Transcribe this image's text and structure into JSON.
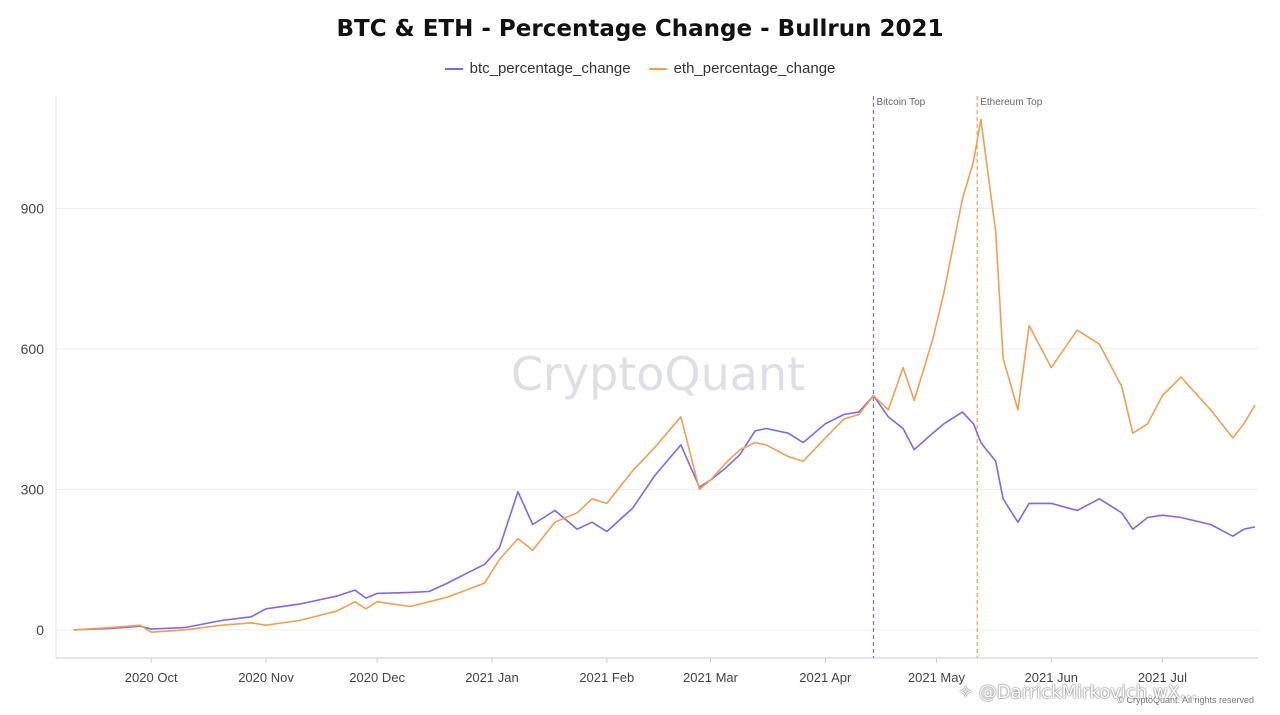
{
  "chart_data": {
    "type": "line",
    "title": "BTC & ETH - Percentage Change - Bullrun 2021",
    "xlabel": "",
    "ylabel": "",
    "x_range": [
      "2020-09-08",
      "2021-07-26"
    ],
    "ylim": [
      -60,
      1140
    ],
    "y_ticks": [
      0,
      300,
      600,
      900
    ],
    "x_ticks": [
      {
        "label": "2020 Oct",
        "date": "2020-10-01"
      },
      {
        "label": "2020 Nov",
        "date": "2020-11-01"
      },
      {
        "label": "2020 Dec",
        "date": "2020-12-01"
      },
      {
        "label": "2021 Jan",
        "date": "2021-01-01"
      },
      {
        "label": "2021 Feb",
        "date": "2021-02-01"
      },
      {
        "label": "2021 Mar",
        "date": "2021-03-01"
      },
      {
        "label": "2021 Apr",
        "date": "2021-04-01"
      },
      {
        "label": "2021 May",
        "date": "2021-05-01"
      },
      {
        "label": "2021 Jun",
        "date": "2021-06-01"
      },
      {
        "label": "2021 Jul",
        "date": "2021-07-01"
      }
    ],
    "grid": true,
    "legend_position": "top-center",
    "watermark": "CryptoQuant",
    "credit": "© CryptoQuant. All rights reserved",
    "annotations": [
      {
        "label": "Bitcoin Top",
        "date": "2021-04-14",
        "color": "#7b68ee"
      },
      {
        "label": "Ethereum Top",
        "date": "2021-05-12",
        "color": "#f0a050"
      }
    ],
    "series": [
      {
        "name": "btc_percentage_change",
        "color": "#7b68ee",
        "points": [
          [
            "2020-09-10",
            0
          ],
          [
            "2020-09-20",
            3
          ],
          [
            "2020-09-28",
            8
          ],
          [
            "2020-10-01",
            2
          ],
          [
            "2020-10-10",
            5
          ],
          [
            "2020-10-20",
            20
          ],
          [
            "2020-10-28",
            28
          ],
          [
            "2020-11-01",
            45
          ],
          [
            "2020-11-10",
            55
          ],
          [
            "2020-11-20",
            72
          ],
          [
            "2020-11-25",
            85
          ],
          [
            "2020-11-28",
            68
          ],
          [
            "2020-12-01",
            78
          ],
          [
            "2020-12-10",
            80
          ],
          [
            "2020-12-15",
            82
          ],
          [
            "2020-12-20",
            100
          ],
          [
            "2020-12-25",
            120
          ],
          [
            "2020-12-30",
            140
          ],
          [
            "2021-01-03",
            175
          ],
          [
            "2021-01-08",
            295
          ],
          [
            "2021-01-12",
            225
          ],
          [
            "2021-01-18",
            255
          ],
          [
            "2021-01-24",
            215
          ],
          [
            "2021-01-28",
            230
          ],
          [
            "2021-02-01",
            210
          ],
          [
            "2021-02-08",
            260
          ],
          [
            "2021-02-14",
            330
          ],
          [
            "2021-02-21",
            395
          ],
          [
            "2021-02-26",
            305
          ],
          [
            "2021-03-01",
            320
          ],
          [
            "2021-03-05",
            345
          ],
          [
            "2021-03-09",
            375
          ],
          [
            "2021-03-13",
            425
          ],
          [
            "2021-03-16",
            430
          ],
          [
            "2021-03-22",
            420
          ],
          [
            "2021-03-26",
            400
          ],
          [
            "2021-04-01",
            440
          ],
          [
            "2021-04-06",
            460
          ],
          [
            "2021-04-10",
            465
          ],
          [
            "2021-04-14",
            500
          ],
          [
            "2021-04-18",
            455
          ],
          [
            "2021-04-22",
            430
          ],
          [
            "2021-04-25",
            385
          ],
          [
            "2021-04-30",
            420
          ],
          [
            "2021-05-03",
            440
          ],
          [
            "2021-05-08",
            465
          ],
          [
            "2021-05-11",
            440
          ],
          [
            "2021-05-13",
            400
          ],
          [
            "2021-05-17",
            360
          ],
          [
            "2021-05-19",
            280
          ],
          [
            "2021-05-23",
            230
          ],
          [
            "2021-05-26",
            270
          ],
          [
            "2021-06-01",
            270
          ],
          [
            "2021-06-08",
            255
          ],
          [
            "2021-06-14",
            280
          ],
          [
            "2021-06-20",
            250
          ],
          [
            "2021-06-23",
            215
          ],
          [
            "2021-06-27",
            240
          ],
          [
            "2021-07-01",
            245
          ],
          [
            "2021-07-06",
            240
          ],
          [
            "2021-07-14",
            225
          ],
          [
            "2021-07-20",
            200
          ],
          [
            "2021-07-23",
            215
          ],
          [
            "2021-07-26",
            220
          ]
        ]
      },
      {
        "name": "eth_percentage_change",
        "color": "#f0a050",
        "points": [
          [
            "2020-09-10",
            0
          ],
          [
            "2020-09-20",
            5
          ],
          [
            "2020-09-28",
            10
          ],
          [
            "2020-10-01",
            -5
          ],
          [
            "2020-10-10",
            0
          ],
          [
            "2020-10-20",
            10
          ],
          [
            "2020-10-28",
            15
          ],
          [
            "2020-11-01",
            10
          ],
          [
            "2020-11-10",
            20
          ],
          [
            "2020-11-20",
            40
          ],
          [
            "2020-11-25",
            60
          ],
          [
            "2020-11-28",
            45
          ],
          [
            "2020-12-01",
            60
          ],
          [
            "2020-12-10",
            50
          ],
          [
            "2020-12-15",
            60
          ],
          [
            "2020-12-20",
            70
          ],
          [
            "2020-12-25",
            85
          ],
          [
            "2020-12-30",
            100
          ],
          [
            "2021-01-03",
            150
          ],
          [
            "2021-01-08",
            195
          ],
          [
            "2021-01-12",
            170
          ],
          [
            "2021-01-18",
            230
          ],
          [
            "2021-01-24",
            250
          ],
          [
            "2021-01-28",
            280
          ],
          [
            "2021-02-01",
            270
          ],
          [
            "2021-02-08",
            340
          ],
          [
            "2021-02-14",
            390
          ],
          [
            "2021-02-21",
            455
          ],
          [
            "2021-02-26",
            300
          ],
          [
            "2021-03-01",
            320
          ],
          [
            "2021-03-05",
            355
          ],
          [
            "2021-03-09",
            385
          ],
          [
            "2021-03-13",
            400
          ],
          [
            "2021-03-16",
            395
          ],
          [
            "2021-03-22",
            370
          ],
          [
            "2021-03-26",
            360
          ],
          [
            "2021-04-01",
            410
          ],
          [
            "2021-04-06",
            450
          ],
          [
            "2021-04-10",
            460
          ],
          [
            "2021-04-14",
            500
          ],
          [
            "2021-04-18",
            470
          ],
          [
            "2021-04-22",
            560
          ],
          [
            "2021-04-25",
            490
          ],
          [
            "2021-04-30",
            620
          ],
          [
            "2021-05-03",
            720
          ],
          [
            "2021-05-08",
            920
          ],
          [
            "2021-05-11",
            1000
          ],
          [
            "2021-05-13",
            1090
          ],
          [
            "2021-05-17",
            850
          ],
          [
            "2021-05-19",
            580
          ],
          [
            "2021-05-23",
            470
          ],
          [
            "2021-05-26",
            650
          ],
          [
            "2021-06-01",
            560
          ],
          [
            "2021-06-08",
            640
          ],
          [
            "2021-06-14",
            610
          ],
          [
            "2021-06-20",
            520
          ],
          [
            "2021-06-23",
            420
          ],
          [
            "2021-06-27",
            440
          ],
          [
            "2021-07-01",
            500
          ],
          [
            "2021-07-06",
            540
          ],
          [
            "2021-07-14",
            470
          ],
          [
            "2021-07-20",
            410
          ],
          [
            "2021-07-23",
            440
          ],
          [
            "2021-07-26",
            480
          ]
        ]
      }
    ]
  },
  "overlay": {
    "handle": "@DarrickMirkovich.wX..."
  }
}
